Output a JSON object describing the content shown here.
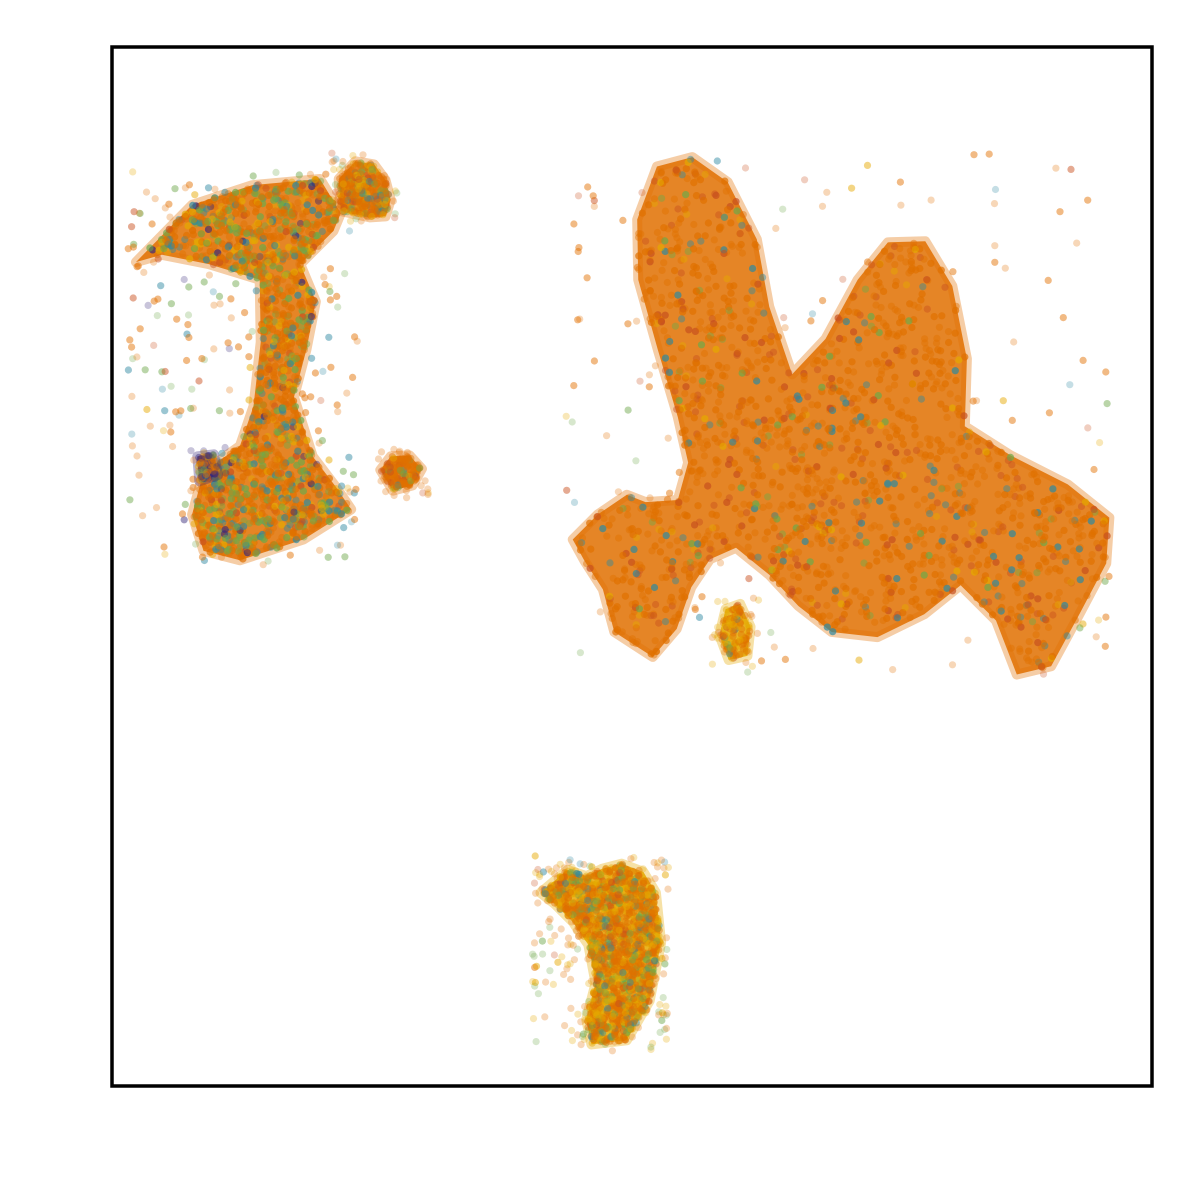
{
  "chart_data": {
    "type": "scatter",
    "title": "",
    "xlabel": "",
    "ylabel": "",
    "xticks": [],
    "yticks": [],
    "legend": "none",
    "grid": false,
    "xlim": [
      0,
      100
    ],
    "ylim": [
      0,
      100
    ],
    "palette": [
      "#e17000",
      "#c8501e",
      "#e5a800",
      "#6ea84a",
      "#2e8aa0",
      "#3a2a7a"
    ],
    "clusters": [
      {
        "name": "",
        "points_approx": 4200,
        "dominant_color": "#e17000",
        "mix": [
          0.52,
          0.04,
          0.1,
          0.2,
          0.12,
          0.02
        ],
        "shape": [
          [
            2.3,
            79.3
          ],
          [
            7.7,
            84.8
          ],
          [
            13.5,
            86.7
          ],
          [
            20.0,
            87.3
          ],
          [
            22.0,
            84.0
          ],
          [
            21.3,
            82.3
          ],
          [
            18.1,
            79.1
          ],
          [
            19.6,
            75.5
          ],
          [
            18.7,
            70.9
          ],
          [
            17.5,
            66.3
          ],
          [
            19.3,
            60.6
          ],
          [
            21.5,
            57.7
          ],
          [
            23.0,
            55.5
          ],
          [
            18.4,
            52.6
          ],
          [
            12.3,
            50.6
          ],
          [
            8.8,
            51.5
          ],
          [
            7.7,
            55.0
          ],
          [
            8.8,
            59.1
          ],
          [
            12.3,
            61.6
          ],
          [
            13.6,
            65.4
          ],
          [
            14.3,
            71.6
          ],
          [
            14.2,
            77.6
          ],
          [
            9.3,
            79.1
          ],
          [
            4.8,
            80.0
          ]
        ]
      },
      {
        "name": "",
        "points_approx": 350,
        "dominant_color": "#e17000",
        "mix": [
          0.6,
          0.06,
          0.14,
          0.12,
          0.08,
          0.0
        ],
        "shape": [
          [
            22.0,
            84.2
          ],
          [
            21.8,
            87.3
          ],
          [
            23.4,
            89.0
          ],
          [
            25.2,
            88.7
          ],
          [
            26.3,
            87.2
          ],
          [
            26.8,
            85.3
          ],
          [
            26.3,
            83.7
          ],
          [
            24.8,
            83.6
          ]
        ]
      },
      {
        "name": "",
        "points_approx": 160,
        "dominant_color": "#e17000",
        "mix": [
          0.7,
          0.12,
          0.06,
          0.08,
          0.04,
          0.0
        ],
        "shape": [
          [
            25.8,
            59.3
          ],
          [
            26.8,
            60.6
          ],
          [
            28.6,
            60.7
          ],
          [
            29.8,
            59.4
          ],
          [
            28.9,
            57.8
          ],
          [
            27.0,
            57.3
          ]
        ]
      },
      {
        "name": "",
        "points_approx": 90,
        "dominant_color": "#3a2a7a",
        "mix": [
          0.3,
          0.0,
          0.1,
          0.05,
          0.05,
          0.5
        ],
        "shape": [
          [
            8.4,
            58.2
          ],
          [
            8.2,
            60.6
          ],
          [
            9.8,
            60.8
          ],
          [
            10.2,
            58.8
          ]
        ]
      },
      {
        "name": "",
        "points_approx": 20000,
        "dominant_color": "#e17000",
        "mix": [
          0.72,
          0.14,
          0.03,
          0.04,
          0.07,
          0.0
        ],
        "shape": [
          [
            44.3,
            52.6
          ],
          [
            46.7,
            55.0
          ],
          [
            49.5,
            56.9
          ],
          [
            51.3,
            56.2
          ],
          [
            54.4,
            56.4
          ],
          [
            55.4,
            60.0
          ],
          [
            54.4,
            64.4
          ],
          [
            52.5,
            70.8
          ],
          [
            50.6,
            77.6
          ],
          [
            50.5,
            83.4
          ],
          [
            52.4,
            88.5
          ],
          [
            55.8,
            89.4
          ],
          [
            59.2,
            87.0
          ],
          [
            62.0,
            81.5
          ],
          [
            63.2,
            75.0
          ],
          [
            65.4,
            68.5
          ],
          [
            68.6,
            71.9
          ],
          [
            71.7,
            77.6
          ],
          [
            74.6,
            81.2
          ],
          [
            78.2,
            81.3
          ],
          [
            80.8,
            77.0
          ],
          [
            82.2,
            70.0
          ],
          [
            82.0,
            63.5
          ],
          [
            86.4,
            60.7
          ],
          [
            91.9,
            57.9
          ],
          [
            95.9,
            54.7
          ],
          [
            95.6,
            50.3
          ],
          [
            92.8,
            45.0
          ],
          [
            90.3,
            40.4
          ],
          [
            87.0,
            39.6
          ],
          [
            85.0,
            44.8
          ],
          [
            81.6,
            48.2
          ],
          [
            78.1,
            45.4
          ],
          [
            73.6,
            43.2
          ],
          [
            69.2,
            43.7
          ],
          [
            66.0,
            46.2
          ],
          [
            63.2,
            49.2
          ],
          [
            60.0,
            51.8
          ],
          [
            57.5,
            50.7
          ],
          [
            55.7,
            48.0
          ],
          [
            54.3,
            44.0
          ],
          [
            52.0,
            41.3
          ],
          [
            48.3,
            43.7
          ],
          [
            47.2,
            47.8
          ],
          [
            45.4,
            50.6
          ]
        ]
      },
      {
        "name": "",
        "points_approx": 120,
        "dominant_color": "#e5a800",
        "mix": [
          0.55,
          0.05,
          0.3,
          0.05,
          0.05,
          0.0
        ],
        "shape": [
          [
            58.4,
            43.4
          ],
          [
            59.0,
            45.9
          ],
          [
            60.4,
            46.4
          ],
          [
            61.4,
            44.2
          ],
          [
            61.1,
            41.4
          ],
          [
            59.3,
            41.0
          ]
        ]
      },
      {
        "name": "",
        "points_approx": 1900,
        "dominant_color": "#e5a800",
        "mix": [
          0.55,
          0.03,
          0.25,
          0.12,
          0.05,
          0.0
        ],
        "shape": [
          [
            41.2,
            18.6
          ],
          [
            43.8,
            20.8
          ],
          [
            45.6,
            20.2
          ],
          [
            47.1,
            20.9
          ],
          [
            49.0,
            21.4
          ],
          [
            51.1,
            20.6
          ],
          [
            52.3,
            18.6
          ],
          [
            52.8,
            13.8
          ],
          [
            51.7,
            8.2
          ],
          [
            49.5,
            4.4
          ],
          [
            46.1,
            4.0
          ],
          [
            45.6,
            6.4
          ],
          [
            46.5,
            9.9
          ],
          [
            45.8,
            13.6
          ],
          [
            44.3,
            15.8
          ],
          [
            42.6,
            17.5
          ]
        ]
      }
    ]
  }
}
